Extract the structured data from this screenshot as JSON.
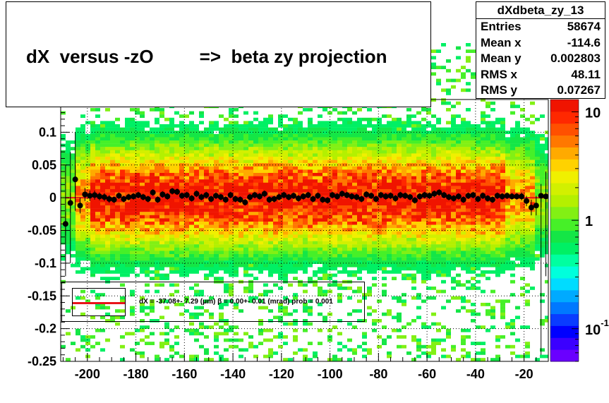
{
  "title": "dX  versus -zO         =>  beta zy projection",
  "stats": {
    "name": "dXdbeta_zy_13",
    "rows": [
      {
        "label": "Entries",
        "value": "58674"
      },
      {
        "label": "Mean x",
        "value": "-114.6"
      },
      {
        "label": "Mean y",
        "value": "0.002803"
      },
      {
        "label": "RMS x",
        "value": "48.11"
      },
      {
        "label": "RMS y",
        "value": "0.07267"
      }
    ]
  },
  "legend": {
    "text": "dX =  -37.08+- 7.29 (μm) β =    0.00+- 0.01 (mrad) prob = 0.001"
  },
  "colors": {
    "fit_line": "#e8141b",
    "points": "#000000"
  },
  "chart_data": {
    "type": "heatmap",
    "title": "dX  versus -zO         =>  beta zy projection",
    "xlabel": "",
    "ylabel": "",
    "xlim": [
      -211,
      -10
    ],
    "ylim": [
      -0.25,
      0.15
    ],
    "x_ticks": [
      -200,
      -180,
      -160,
      -140,
      -120,
      -100,
      -80,
      -60,
      -40,
      -20
    ],
    "y_ticks": [
      -0.25,
      -0.2,
      -0.15,
      -0.1,
      -0.05,
      0,
      0.05,
      0.1
    ],
    "y_tick_labels": [
      "-0.25",
      "-0.2",
      "-0.15",
      "-0.1",
      "-0.05",
      "0",
      "0.05",
      "0.1"
    ],
    "grid": true,
    "colorbar": {
      "scale": "log",
      "labels": [
        {
          "text": "10",
          "sup": "-1",
          "value": 0.1
        },
        {
          "text": "1",
          "sup": "",
          "value": 1
        },
        {
          "text": "10",
          "sup": "",
          "value": 10
        }
      ],
      "range": [
        0.05,
        13
      ]
    },
    "profile_points": {
      "x": [
        -209,
        -207,
        -205,
        -203,
        -201,
        -199,
        -197,
        -195,
        -193,
        -191,
        -189,
        -187,
        -185,
        -183,
        -181,
        -179,
        -177,
        -175,
        -173,
        -171,
        -169,
        -167,
        -165,
        -163,
        -161,
        -159,
        -157,
        -155,
        -153,
        -151,
        -149,
        -147,
        -145,
        -143,
        -141,
        -139,
        -137,
        -135,
        -133,
        -131,
        -129,
        -127,
        -125,
        -123,
        -121,
        -119,
        -117,
        -115,
        -113,
        -111,
        -109,
        -107,
        -105,
        -103,
        -101,
        -99,
        -97,
        -95,
        -93,
        -91,
        -89,
        -87,
        -85,
        -83,
        -81,
        -79,
        -77,
        -75,
        -73,
        -71,
        -69,
        -67,
        -65,
        -63,
        -61,
        -59,
        -57,
        -55,
        -53,
        -51,
        -49,
        -47,
        -45,
        -43,
        -41,
        -39,
        -37,
        -35,
        -33,
        -31,
        -29,
        -27,
        -25,
        -23,
        -21,
        -19,
        -17,
        -15,
        -13,
        -11
      ],
      "y": [
        -0.04,
        -0.008,
        0.028,
        -0.012,
        0.005,
        0.003,
        0.004,
        0.002,
        0.001,
        -0.002,
        -0.003,
        0.003,
        -0.002,
        0.001,
        0.002,
        0.004,
        0.001,
        -0.002,
        0.008,
        -0.003,
        0.005,
        0.002,
        0.01,
        0.009,
        0.003,
        0.004,
        -0.001,
        0.006,
        0.001,
        0.004,
        -0.002,
        0.003,
        0.001,
        -0.003,
        0.004,
        -0.002,
        -0.003,
        -0.007,
        0.001,
        0.004,
        0.002,
        0.006,
        -0.003,
        -0.002,
        0.001,
        0.004,
        0.001,
        0.003,
        -0.001,
        0.002,
        0.004,
        -0.002,
        0.003,
        -0.003,
        -0.004,
        0.004,
        0.002,
        0.006,
        0.004,
        0.002,
        0.001,
        -0.002,
        0.005,
        0.003,
        -0.002,
        0.004,
        0.002,
        0.003,
        -0.001,
        0.004,
        0.003,
        0.001,
        -0.004,
        0.002,
        0.004,
        0.003,
        0.006,
        0.008,
        0.004,
        0.001,
        -0.001,
        0.002,
        -0.003,
        0.003,
        0.004,
        -0.002,
        0.003,
        -0.001,
        -0.003,
        0.003,
        0.002,
        0.003,
        0.002,
        0.002,
        0.002,
        -0.005,
        -0.015,
        -0.012,
        0.003,
        0.002
      ],
      "err": [
        0.018,
        0.015,
        0.022,
        0.012,
        0.01,
        0.008,
        0.007,
        0.006,
        0.006,
        0.006,
        0.005,
        0.005,
        0.005,
        0.005,
        0.005,
        0.005,
        0.005,
        0.005,
        0.005,
        0.005,
        0.005,
        0.005,
        0.005,
        0.005,
        0.005,
        0.005,
        0.005,
        0.005,
        0.005,
        0.005,
        0.005,
        0.005,
        0.005,
        0.005,
        0.005,
        0.005,
        0.005,
        0.005,
        0.005,
        0.005,
        0.005,
        0.005,
        0.005,
        0.005,
        0.005,
        0.005,
        0.005,
        0.005,
        0.005,
        0.005,
        0.005,
        0.005,
        0.005,
        0.005,
        0.005,
        0.005,
        0.005,
        0.005,
        0.005,
        0.005,
        0.005,
        0.005,
        0.005,
        0.005,
        0.005,
        0.005,
        0.005,
        0.005,
        0.005,
        0.005,
        0.005,
        0.005,
        0.005,
        0.005,
        0.005,
        0.005,
        0.005,
        0.005,
        0.005,
        0.005,
        0.005,
        0.005,
        0.005,
        0.005,
        0.005,
        0.005,
        0.005,
        0.005,
        0.005,
        0.005,
        0.005,
        0.005,
        0.005,
        0.005,
        0.006,
        0.008,
        0.012,
        0.015,
        0.018,
        0.02
      ]
    },
    "fit": {
      "intercept_y": 0.0,
      "slope": 0.0
    }
  }
}
